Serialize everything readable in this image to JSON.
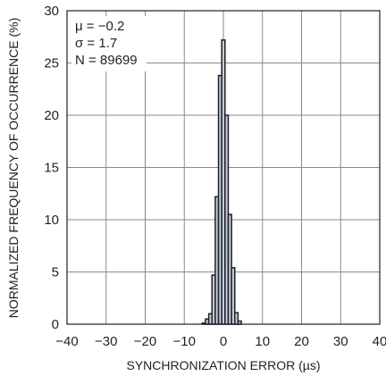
{
  "chart_data": {
    "type": "bar",
    "xlabel": "SYNCHRONIZATION ERROR (µs)",
    "ylabel": "NORMALIZED FREQUENCY OF OCCURRENCE (%)",
    "xlim": [
      -40,
      40
    ],
    "ylim": [
      0,
      30
    ],
    "x_ticks": [
      "−40",
      "−30",
      "−20",
      "−10",
      "0",
      "10",
      "20",
      "30",
      "40"
    ],
    "x_tick_values": [
      -40,
      -30,
      -20,
      -10,
      0,
      10,
      20,
      30,
      40
    ],
    "y_ticks": [
      "0",
      "5",
      "10",
      "15",
      "20",
      "25",
      "30"
    ],
    "y_tick_values": [
      0,
      5,
      10,
      15,
      20,
      25,
      30
    ],
    "grid": true,
    "annotation": [
      "μ = −0.2",
      "σ = 1.7",
      "N = 89699"
    ],
    "bar_color": "#bfcde0",
    "edge_color": "#231f20",
    "bin_width": 0.833,
    "x": [
      -5,
      -4.17,
      -3.33,
      -2.5,
      -1.67,
      -0.83,
      0,
      0.83,
      1.67,
      2.5,
      3.33,
      4.17
    ],
    "values": [
      0.1,
      0.5,
      1.0,
      4.7,
      12.2,
      23.8,
      27.2,
      20.0,
      10.5,
      5.4,
      1.1,
      0.3
    ]
  }
}
